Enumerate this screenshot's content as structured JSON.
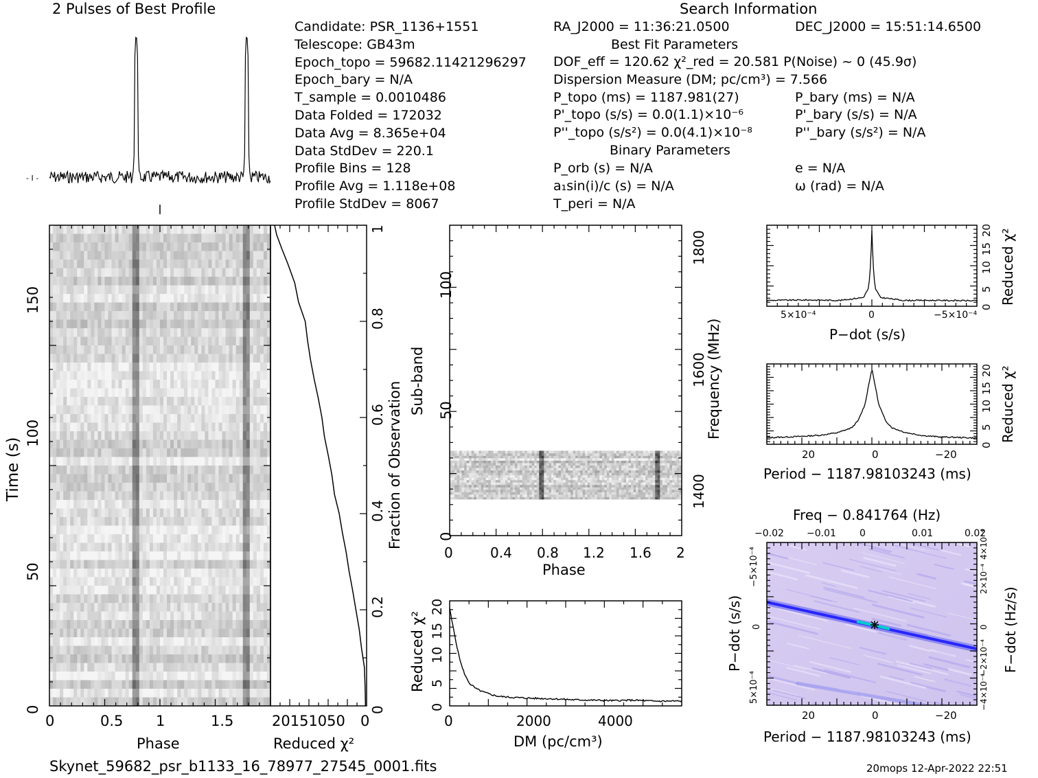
{
  "colors": {
    "ink": "#000000",
    "dot_low": "#ede6f9",
    "dot_high": "#1a1aff",
    "cyan": "#00d0d0",
    "green": "#00aa00"
  },
  "profile_panel": {
    "title": "2 Pulses of Best Profile"
  },
  "header": {
    "search_info_title": "Search Information",
    "best_fit_title": "Best Fit Parameters",
    "binary_title": "Binary Parameters",
    "left_col": [
      [
        "Candidate:  PSR_1136+1551"
      ],
      [
        "Telescope:  GB43m"
      ],
      [
        "Epoch_topo = 59682.11421296297"
      ],
      [
        "Epoch_bary = N/A"
      ],
      [
        "T_sample       =  0.0010486"
      ],
      [
        "Data Folded    =  172032"
      ],
      [
        "Data Avg       =  8.365e+04"
      ],
      [
        "Data StdDev    =  220.1"
      ],
      [
        "Profile Bins   =  128"
      ],
      [
        "Profile Avg    =  1.118e+08"
      ],
      [
        "Profile StdDev =  8067"
      ]
    ],
    "ra": "RA_J2000 = 11:36:21.0500",
    "dec": "DEC_J2000 = 15:51:14.6500",
    "dof": "DOF_eff = 120.62  χ²_red = 20.581  P(Noise) ~ 0   (45.9σ)",
    "dm_line": "Dispersion Measure (DM; pc/cm³) = 7.566",
    "ptopo": "P_topo (ms) =  1187.981(27)",
    "pdtopo": "P'_topo (s/s) = 0.0(1.1)×10⁻⁶",
    "pddtopo": "P''_topo (s/s²) = 0.0(4.1)×10⁻⁸",
    "pbary": "P_bary (ms) = N/A",
    "pdbary": "P'_bary (s/s) = N/A",
    "pddbary": "P''_bary (s/s²) = N/A",
    "porb": "P_orb (s) = N/A",
    "asini": "a₁sin(i)/c (s) = N/A",
    "tperi": "T_peri = N/A",
    "ecc": "e = N/A",
    "omega": "ω (rad) = N/A"
  },
  "footer": {
    "filename": "Skynet_59682_psr_b1133_16_78977_27545_0001.fits",
    "stamp": "20mops 12-Apr-2022 22:51"
  },
  "chart_data": [
    {
      "id": "profile",
      "type": "line",
      "title": "2 Pulses of Best Profile",
      "x_range": [
        0,
        2
      ],
      "pulse_phases": [
        0.785,
        1.785
      ],
      "peak_height_rel": 1.0
    },
    {
      "id": "time_phase",
      "type": "heatmap",
      "xlabel": "Phase",
      "ylabel": "Time (s)",
      "xlim": [
        0,
        2
      ],
      "ylim": [
        0,
        180
      ],
      "x_ticks": [
        "0",
        "0.5",
        "1",
        "1.5"
      ],
      "y_ticks": [
        "0",
        "50",
        "100",
        "150"
      ],
      "right_axis_label": "Fraction of Observation",
      "right_ticks": [
        "0",
        "0.2",
        "0.4",
        "0.6",
        "0.8",
        "1"
      ]
    },
    {
      "id": "time_chi2",
      "type": "line",
      "xlabel": "Reduced χ²",
      "x_ticks": [
        "20",
        "15",
        "10",
        "5",
        "0"
      ],
      "xlim": [
        22,
        0
      ],
      "points": [
        [
          21.0,
          1.0
        ],
        [
          20.5,
          0.98
        ],
        [
          19.5,
          0.95
        ],
        [
          18.0,
          0.92
        ],
        [
          16.5,
          0.88
        ],
        [
          15.5,
          0.84
        ],
        [
          14.2,
          0.8
        ],
        [
          13.5,
          0.76
        ],
        [
          12.8,
          0.72
        ],
        [
          12.0,
          0.68
        ],
        [
          11.2,
          0.64
        ],
        [
          10.3,
          0.6
        ],
        [
          9.6,
          0.56
        ],
        [
          8.8,
          0.52
        ],
        [
          8.0,
          0.48
        ],
        [
          7.2,
          0.44
        ],
        [
          6.4,
          0.4
        ],
        [
          5.6,
          0.36
        ],
        [
          4.8,
          0.32
        ],
        [
          3.9,
          0.28
        ],
        [
          3.1,
          0.24
        ],
        [
          2.4,
          0.2
        ],
        [
          1.8,
          0.16
        ],
        [
          1.2,
          0.12
        ],
        [
          0.6,
          0.08
        ],
        [
          0.3,
          0.04
        ],
        [
          0.2,
          0.0
        ]
      ]
    },
    {
      "id": "subband_phase",
      "type": "heatmap",
      "xlabel": "Phase",
      "ylabel": "Sub-band",
      "right_label": "Frequency (MHz)",
      "xlim": [
        0,
        2
      ],
      "ylim": [
        0,
        128
      ],
      "x_ticks": [
        "0",
        "0.4",
        "0.8",
        "1.2",
        "1.6",
        "2"
      ],
      "y_ticks": [
        "0",
        "50",
        "100"
      ],
      "freq_ticks": [
        "1400",
        "1600",
        "1800"
      ],
      "filled_subbands": [
        15,
        35
      ]
    },
    {
      "id": "dm_chi2",
      "type": "line",
      "xlabel": "DM (pc/cm³)",
      "ylabel": "Reduced χ²",
      "xlim": [
        0,
        5700
      ],
      "ylim": [
        0,
        22
      ],
      "x_ticks": [
        "0",
        "2000",
        "4000"
      ],
      "y_ticks": [
        "0",
        "5",
        "10",
        "15",
        "20"
      ],
      "points": [
        [
          0,
          20.5
        ],
        [
          50,
          18
        ],
        [
          120,
          15
        ],
        [
          200,
          11.5
        ],
        [
          300,
          8.2
        ],
        [
          400,
          6
        ],
        [
          500,
          4.6
        ],
        [
          650,
          3.6
        ],
        [
          800,
          3
        ],
        [
          1000,
          2.4
        ],
        [
          1200,
          2.0
        ],
        [
          1500,
          1.8
        ],
        [
          2000,
          1.6
        ],
        [
          2500,
          1.5
        ],
        [
          3000,
          1.3
        ],
        [
          3500,
          1.2
        ],
        [
          4000,
          1.1
        ],
        [
          4500,
          1.2
        ],
        [
          5000,
          1.0
        ],
        [
          5700,
          1.0
        ]
      ]
    },
    {
      "id": "pdot_chi2",
      "type": "line",
      "xlabel": "P−dot (s/s)",
      "ylabel": "Reduced χ²",
      "x_ticks": [
        "5×10⁻⁴",
        "0",
        "−5×10⁻⁴"
      ],
      "y_ticks": [
        "0",
        "5",
        "10",
        "15",
        "20"
      ],
      "ylim": [
        0,
        22
      ],
      "points": [
        [
          -1.0,
          1.6
        ],
        [
          -0.6,
          1.7
        ],
        [
          -0.3,
          1.6
        ],
        [
          -0.08,
          2.4
        ],
        [
          -0.03,
          5
        ],
        [
          -0.01,
          12
        ],
        [
          0,
          20.6
        ],
        [
          0.01,
          12
        ],
        [
          0.03,
          5
        ],
        [
          0.08,
          2.4
        ],
        [
          0.3,
          1.6
        ],
        [
          0.6,
          1.6
        ],
        [
          1.0,
          1.5
        ]
      ]
    },
    {
      "id": "period_chi2",
      "type": "line",
      "xlabel": "Period − 1187.98103243 (ms)",
      "ylabel": "Reduced χ²",
      "x_ticks": [
        "20",
        "0",
        "−20"
      ],
      "y_ticks": [
        "0",
        "5",
        "10",
        "15",
        "20"
      ],
      "xlim": [
        31,
        -31
      ],
      "ylim": [
        0,
        22
      ],
      "points": [
        [
          31,
          1.8
        ],
        [
          25,
          2.0
        ],
        [
          20,
          2.2
        ],
        [
          15,
          2.5
        ],
        [
          10,
          3.2
        ],
        [
          6,
          4.5
        ],
        [
          4,
          6.5
        ],
        [
          2,
          11
        ],
        [
          1,
          16
        ],
        [
          0,
          20.6
        ],
        [
          -1,
          16
        ],
        [
          -2,
          11
        ],
        [
          -4,
          6.5
        ],
        [
          -6,
          4.5
        ],
        [
          -10,
          3.2
        ],
        [
          -15,
          2.4
        ],
        [
          -20,
          2.0
        ],
        [
          -25,
          1.9
        ],
        [
          -31,
          1.7
        ]
      ]
    },
    {
      "id": "pp_dot",
      "type": "heatmap",
      "xlabel": "Period − 1187.98103243 (ms)",
      "ylabel": "P−dot (s/s)",
      "top_label": "Freq − 0.841764 (Hz)",
      "right_label": "F−dot (Hz/s)",
      "x_ticks": [
        "20",
        "0",
        "−20"
      ],
      "top_ticks": [
        "−0.02",
        "−0.01",
        "0",
        "0.01",
        "0.02"
      ],
      "y_ticks": [
        "5×10⁻⁴",
        "0",
        "−5×10⁻⁴"
      ],
      "right_ticks": [
        "−4×10⁻⁴",
        "−2×10⁻⁴",
        "0",
        "2×10⁻⁴",
        "4×10⁻⁴"
      ],
      "best": [
        0,
        0
      ]
    }
  ]
}
